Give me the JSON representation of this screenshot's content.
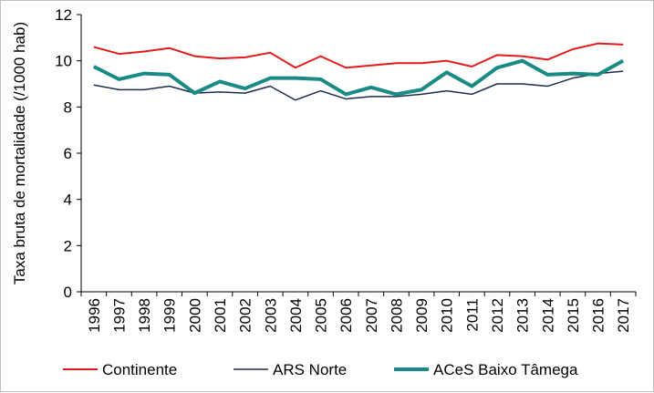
{
  "chart_data": {
    "type": "line",
    "ylabel": "Taxa bruta de mortalidade (/1000 hab)",
    "xlabel": "",
    "ylim": [
      0,
      12
    ],
    "yticks": [
      0,
      2,
      4,
      6,
      8,
      10,
      12
    ],
    "grid": false,
    "legend_position": "bottom",
    "x": [
      "1996",
      "1997",
      "1998",
      "1999",
      "2000",
      "2001",
      "2002",
      "2003",
      "2004",
      "2005",
      "2006",
      "2007",
      "2008",
      "2009",
      "2010",
      "2011",
      "2012",
      "2013",
      "2014",
      "2015",
      "2016",
      "2017"
    ],
    "series": [
      {
        "name": "Continente",
        "color": "#e31a1c",
        "values": [
          10.6,
          10.3,
          10.4,
          10.55,
          10.2,
          10.1,
          10.15,
          10.35,
          9.7,
          10.2,
          9.7,
          9.8,
          9.9,
          9.9,
          10.0,
          9.75,
          10.25,
          10.2,
          10.05,
          10.5,
          10.75,
          10.7
        ]
      },
      {
        "name": "ARS Norte",
        "color": "#1f2d4d",
        "values": [
          8.95,
          8.75,
          8.75,
          8.9,
          8.6,
          8.65,
          8.6,
          8.9,
          8.3,
          8.7,
          8.35,
          8.45,
          8.45,
          8.55,
          8.7,
          8.55,
          9.0,
          9.0,
          8.9,
          9.25,
          9.45,
          9.55
        ]
      },
      {
        "name": "ACeS Baixo Tâmega",
        "color": "#1a8a84",
        "values": [
          9.75,
          9.2,
          9.45,
          9.4,
          8.6,
          9.1,
          8.8,
          9.25,
          9.25,
          9.2,
          8.55,
          8.85,
          8.55,
          8.75,
          9.5,
          8.9,
          9.7,
          10.0,
          9.4,
          9.45,
          9.4,
          10.0
        ]
      }
    ]
  }
}
